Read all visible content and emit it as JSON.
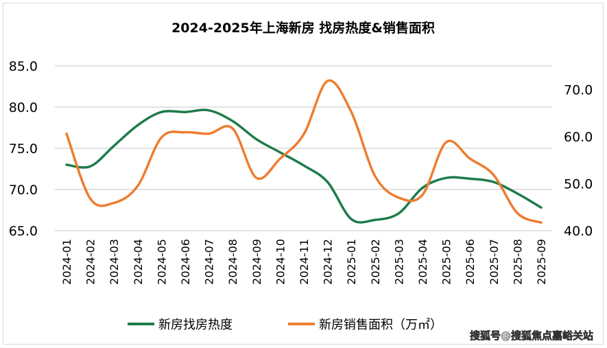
{
  "chart_data": {
    "type": "line",
    "title": "2024-2025年上海新房 找房热度&销售面积",
    "categories": [
      "2024-01",
      "2024-02",
      "2024-03",
      "2024-04",
      "2024-05",
      "2024-06",
      "2024-07",
      "2024-08",
      "2024-09",
      "2024-10",
      "2024-11",
      "2024-12",
      "2025-01",
      "2025-02",
      "2025-03",
      "2025-04",
      "2025-05",
      "2025-06",
      "2025-07",
      "2025-08",
      "2025-09"
    ],
    "y_left": {
      "range": [
        65,
        85
      ],
      "ticks": [
        "65.0",
        "70.0",
        "75.0",
        "80.0",
        "85.0"
      ]
    },
    "y_right": {
      "range": [
        40,
        75
      ],
      "ticks": [
        "40.0",
        "50.0",
        "60.0",
        "70.0"
      ]
    },
    "grid": true,
    "legend_position": "bottom",
    "series": [
      {
        "name": "新房找房热度",
        "axis": "left",
        "color": "#1e7b4b",
        "values": [
          73.0,
          72.8,
          75.3,
          77.8,
          79.4,
          79.4,
          79.6,
          78.3,
          76.1,
          74.5,
          72.9,
          70.9,
          66.4,
          66.3,
          67.1,
          70.2,
          71.4,
          71.3,
          70.9,
          69.5,
          67.8
        ]
      },
      {
        "name": "新房销售面积（万㎡）",
        "axis": "right",
        "color": "#ed7d31",
        "values": [
          60.6,
          46.8,
          45.9,
          49.5,
          59.8,
          60.9,
          60.6,
          61.7,
          51.2,
          55.3,
          60.5,
          71.8,
          65.2,
          51.6,
          47.0,
          47.6,
          58.8,
          55.3,
          51.8,
          43.7,
          41.7
        ]
      }
    ]
  },
  "watermark": "搜狐号@搜狐焦点嘉峪关站"
}
